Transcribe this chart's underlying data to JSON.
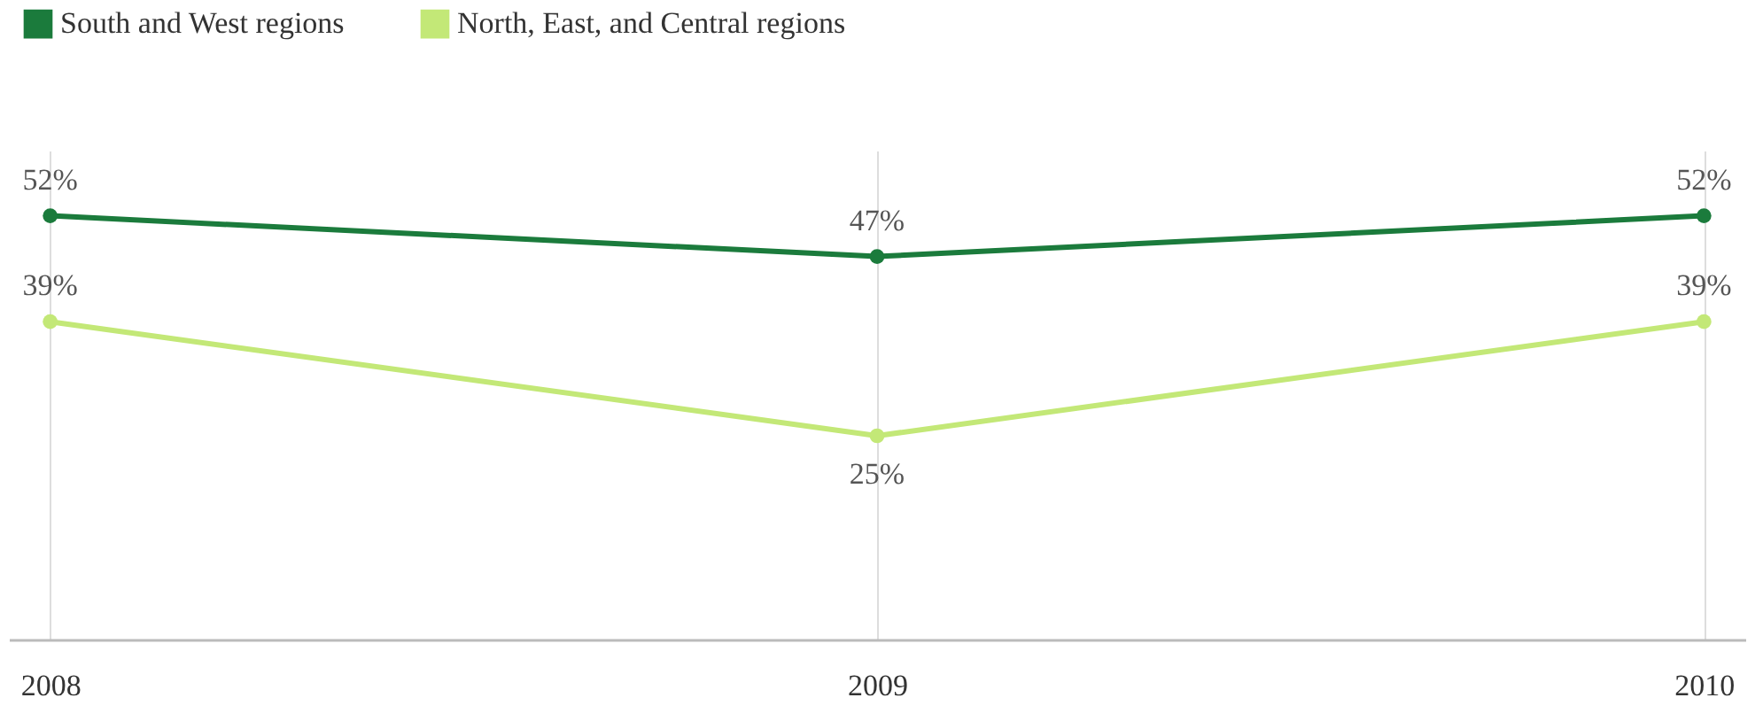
{
  "chart_data": {
    "type": "line",
    "categories": [
      "2008",
      "2009",
      "2010"
    ],
    "ylim": [
      0,
      60
    ],
    "grid": "x",
    "legend": "top left",
    "marker": "circle",
    "line_style": "solid",
    "tick_labels": "x",
    "series": [
      {
        "name": "South and West regions",
        "color": "#1b7b3c",
        "values": [
          52,
          47,
          52
        ],
        "value_labels": [
          "52%",
          "47%",
          "52%"
        ]
      },
      {
        "name": "North, East, and Central regions",
        "color": "#c3e877",
        "values": [
          39,
          25,
          39
        ],
        "value_labels": [
          "39%",
          "25%",
          "39%"
        ]
      }
    ]
  }
}
